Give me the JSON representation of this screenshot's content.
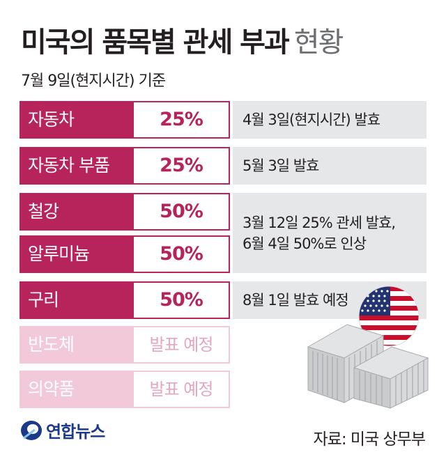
{
  "title": {
    "bold": "미국의 품목별 관세 부과",
    "light": "현황"
  },
  "subtitle": "7월 9일(현지시간) 기준",
  "items": [
    {
      "name": "자동차",
      "rate": "25%"
    },
    {
      "name": "자동차 부품",
      "rate": "25%"
    },
    {
      "name": "철강",
      "rate": "50%"
    },
    {
      "name": "알루미늄",
      "rate": "50%"
    },
    {
      "name": "구리",
      "rate": "50%"
    },
    {
      "name": "반도체",
      "rate": "발표 예정"
    },
    {
      "name": "의약품",
      "rate": "발표 예정"
    }
  ],
  "notes": [
    {
      "lines": [
        "4월 3일(현지시간) 발효"
      ]
    },
    {
      "lines": [
        "5월 3일 발효"
      ]
    },
    {
      "lines": [
        "3월 12일 25% 관세 발효,",
        "6월 4일 50%로 인상"
      ]
    },
    {
      "lines": [
        "8월 1일 발효 예정"
      ]
    }
  ],
  "logo": {
    "text": "연합뉴스",
    "icon": "yonhap-logo-icon"
  },
  "source": "자료: 미국 상무부",
  "colors": {
    "accent": "#b7245c",
    "pending": "#f1c9d8",
    "note_bg": "#e6e7e8",
    "logo": "#1d3a8a"
  },
  "illustration": {
    "icons": [
      "us-flag-icon",
      "shipping-container-icon"
    ]
  }
}
